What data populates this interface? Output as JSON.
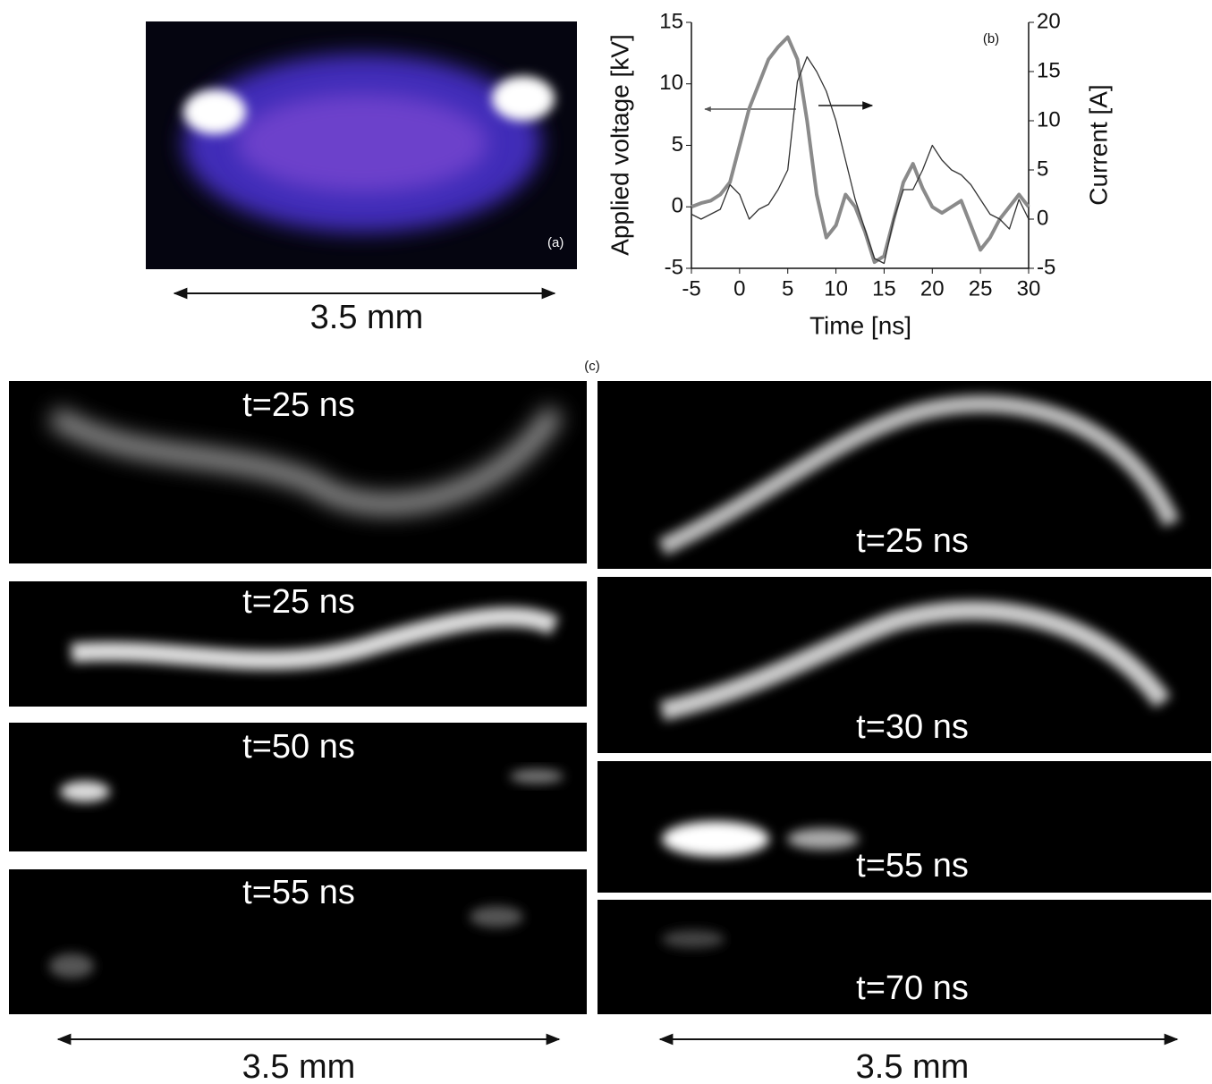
{
  "panel_a": {
    "label": "(a)",
    "scale": "3.5 mm"
  },
  "chart_data": {
    "type": "line",
    "panel_label": "(b)",
    "x_label": "Time [ns]",
    "y_label": "Applied voltage [kV]",
    "y2_label": "Current [A]",
    "x": [
      -5,
      -4,
      -3,
      -2,
      -1,
      0,
      1,
      2,
      3,
      4,
      5,
      6,
      7,
      8,
      9,
      10,
      11,
      12,
      13,
      14,
      15,
      16,
      17,
      18,
      19,
      20,
      21,
      22,
      23,
      24,
      25,
      26,
      27,
      28,
      29,
      30
    ],
    "series": [
      {
        "color": "#8a8a8a",
        "values": [
          0,
          0.3,
          0.5,
          1,
          2,
          5,
          8,
          10,
          12,
          13,
          13.8,
          12,
          7,
          1,
          -2.5,
          -1.5,
          1,
          0,
          -2,
          -4.5,
          -4,
          -1,
          2,
          3.5,
          1.5,
          0,
          -0.5,
          0,
          0.5,
          -1.5,
          -3.5,
          -2.5,
          -1,
          0,
          1,
          0
        ]
      },
      {
        "color": "#333333",
        "axis": "y2",
        "values": [
          0.5,
          0,
          0.5,
          1,
          3.5,
          2.5,
          0,
          1,
          1.5,
          3,
          5,
          14,
          16.5,
          15,
          13,
          10,
          6,
          2,
          -1,
          -4,
          -4.5,
          0,
          3,
          3,
          5,
          7.5,
          6,
          5,
          4.5,
          3.5,
          2,
          0.5,
          0,
          -1,
          2,
          0
        ]
      }
    ],
    "xlim": [
      -5,
      30
    ],
    "xticks": [
      -5,
      0,
      5,
      10,
      15,
      20,
      25,
      30
    ],
    "ylim": [
      -5,
      15
    ],
    "yticks": [
      -5,
      0,
      5,
      10,
      15
    ],
    "y2lim": [
      -5,
      20
    ],
    "y2ticks": [
      -5,
      0,
      5,
      10,
      15,
      20
    ]
  },
  "panel_c": {
    "label": "(c)",
    "left": {
      "frames": [
        "t=25 ns",
        "t=25 ns",
        "t=50 ns",
        "t=55 ns"
      ],
      "scale": "3.5 mm"
    },
    "right": {
      "frames": [
        "t=25 ns",
        "t=30 ns",
        "t=55 ns",
        "t=70 ns"
      ],
      "scale": "3.5 mm"
    }
  }
}
